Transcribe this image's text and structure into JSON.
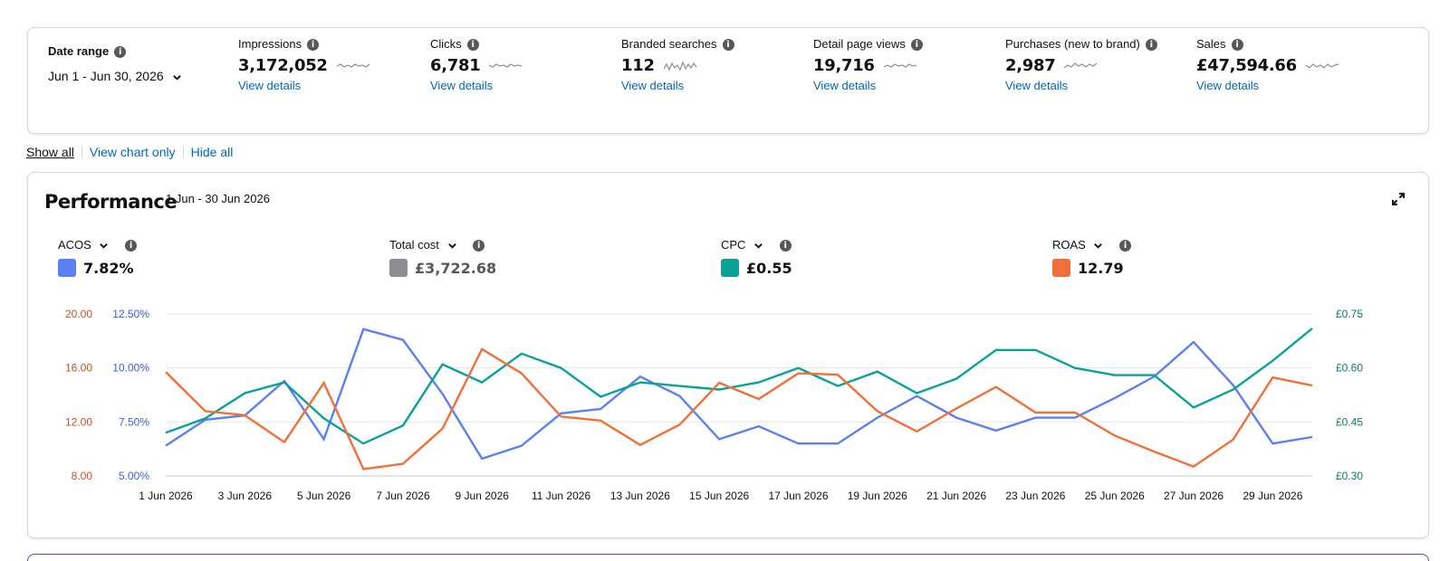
{
  "date_range": {
    "label": "Date range",
    "value": "Jun 1 - Jun 30, 2026"
  },
  "metrics": [
    {
      "label": "Impressions",
      "value": "3,172,052",
      "link": "View details"
    },
    {
      "label": "Clicks",
      "value": "6,781",
      "link": "View details"
    },
    {
      "label": "Branded searches",
      "value": "112",
      "link": "View details"
    },
    {
      "label": "Detail page views",
      "value": "19,716",
      "link": "View details"
    },
    {
      "label": "Purchases (new to brand)",
      "value": "2,987",
      "link": "View details"
    },
    {
      "label": "Sales",
      "value": "£47,594.66",
      "link": "View details"
    }
  ],
  "toggles": {
    "show_all": "Show all",
    "view_chart_only": "View chart only",
    "hide_all": "Hide all"
  },
  "performance": {
    "title": "Performance",
    "range": "1 Jun - 30 Jun 2026",
    "series": [
      {
        "label": "ACOS",
        "value": "7.82%",
        "color": "#5b7ff5"
      },
      {
        "label": "Total cost",
        "value": "£3,722.68",
        "color": "#8c8f90"
      },
      {
        "label": "CPC",
        "value": "£0.55",
        "color": "#0aa296"
      },
      {
        "label": "ROAS",
        "value": "12.79",
        "color": "#f0703a"
      }
    ]
  },
  "chart_data": {
    "type": "line",
    "x": [
      "1 Jun 2026",
      "2 Jun 2026",
      "3 Jun 2026",
      "4 Jun 2026",
      "5 Jun 2026",
      "6 Jun 2026",
      "7 Jun 2026",
      "8 Jun 2026",
      "9 Jun 2026",
      "10 Jun 2026",
      "11 Jun 2026",
      "12 Jun 2026",
      "13 Jun 2026",
      "14 Jun 2026",
      "15 Jun 2026",
      "16 Jun 2026",
      "17 Jun 2026",
      "18 Jun 2026",
      "19 Jun 2026",
      "20 Jun 2026",
      "21 Jun 2026",
      "22 Jun 2026",
      "23 Jun 2026",
      "24 Jun 2026",
      "25 Jun 2026",
      "26 Jun 2026",
      "27 Jun 2026",
      "28 Jun 2026",
      "29 Jun 2026",
      "30 Jun 2026"
    ],
    "x_tick_labels": [
      "1 Jun 2026",
      "3 Jun 2026",
      "5 Jun 2026",
      "7 Jun 2026",
      "9 Jun 2026",
      "11 Jun 2026",
      "13 Jun 2026",
      "15 Jun 2026",
      "17 Jun 2026",
      "19 Jun 2026",
      "21 Jun 2026",
      "23 Jun 2026",
      "25 Jun 2026",
      "27 Jun 2026",
      "29 Jun 2026"
    ],
    "axes": {
      "roas": {
        "side": "left-outer",
        "ticks": [
          "20.00",
          "16.00",
          "12.00",
          "8.00"
        ],
        "range": [
          8,
          20
        ],
        "color": "#c7511f"
      },
      "acos": {
        "side": "left-inner",
        "ticks": [
          "12.50%",
          "10.00%",
          "7.50%",
          "5.00%"
        ],
        "range": [
          5,
          12.5
        ],
        "color": "#3b5fd9"
      },
      "cpc": {
        "side": "right",
        "ticks": [
          "£0.75",
          "£0.60",
          "£0.45",
          "£0.30"
        ],
        "range": [
          0.3,
          0.75
        ],
        "color": "#067d62"
      }
    },
    "grid": true,
    "series": [
      {
        "name": "ACOS",
        "axis": "acos",
        "color": "#5b7ff5",
        "values": [
          6.4,
          7.6,
          7.8,
          9.4,
          6.7,
          11.8,
          11.3,
          8.8,
          5.8,
          6.4,
          7.9,
          8.1,
          9.6,
          8.7,
          6.7,
          7.3,
          6.5,
          6.5,
          7.7,
          8.7,
          7.7,
          7.1,
          7.7,
          7.7,
          8.6,
          9.6,
          11.2,
          9.2,
          6.5,
          6.8
        ]
      },
      {
        "name": "CPC",
        "axis": "cpc",
        "color": "#0aa296",
        "values": [
          0.42,
          0.46,
          0.53,
          0.56,
          0.46,
          0.39,
          0.44,
          0.61,
          0.56,
          0.64,
          0.6,
          0.52,
          0.56,
          0.55,
          0.54,
          0.56,
          0.6,
          0.55,
          0.59,
          0.53,
          0.57,
          0.65,
          0.65,
          0.6,
          0.58,
          0.58,
          0.49,
          0.54,
          0.62,
          0.71
        ]
      },
      {
        "name": "ROAS",
        "axis": "roas",
        "color": "#f0703a",
        "values": [
          15.7,
          12.8,
          12.5,
          10.5,
          14.9,
          8.5,
          8.9,
          11.5,
          17.4,
          15.6,
          12.4,
          12.1,
          10.3,
          11.8,
          14.9,
          13.7,
          15.6,
          15.5,
          12.8,
          11.3,
          13.0,
          14.6,
          12.7,
          12.7,
          11.0,
          9.8,
          8.7,
          10.7,
          15.3,
          14.7
        ]
      }
    ]
  }
}
